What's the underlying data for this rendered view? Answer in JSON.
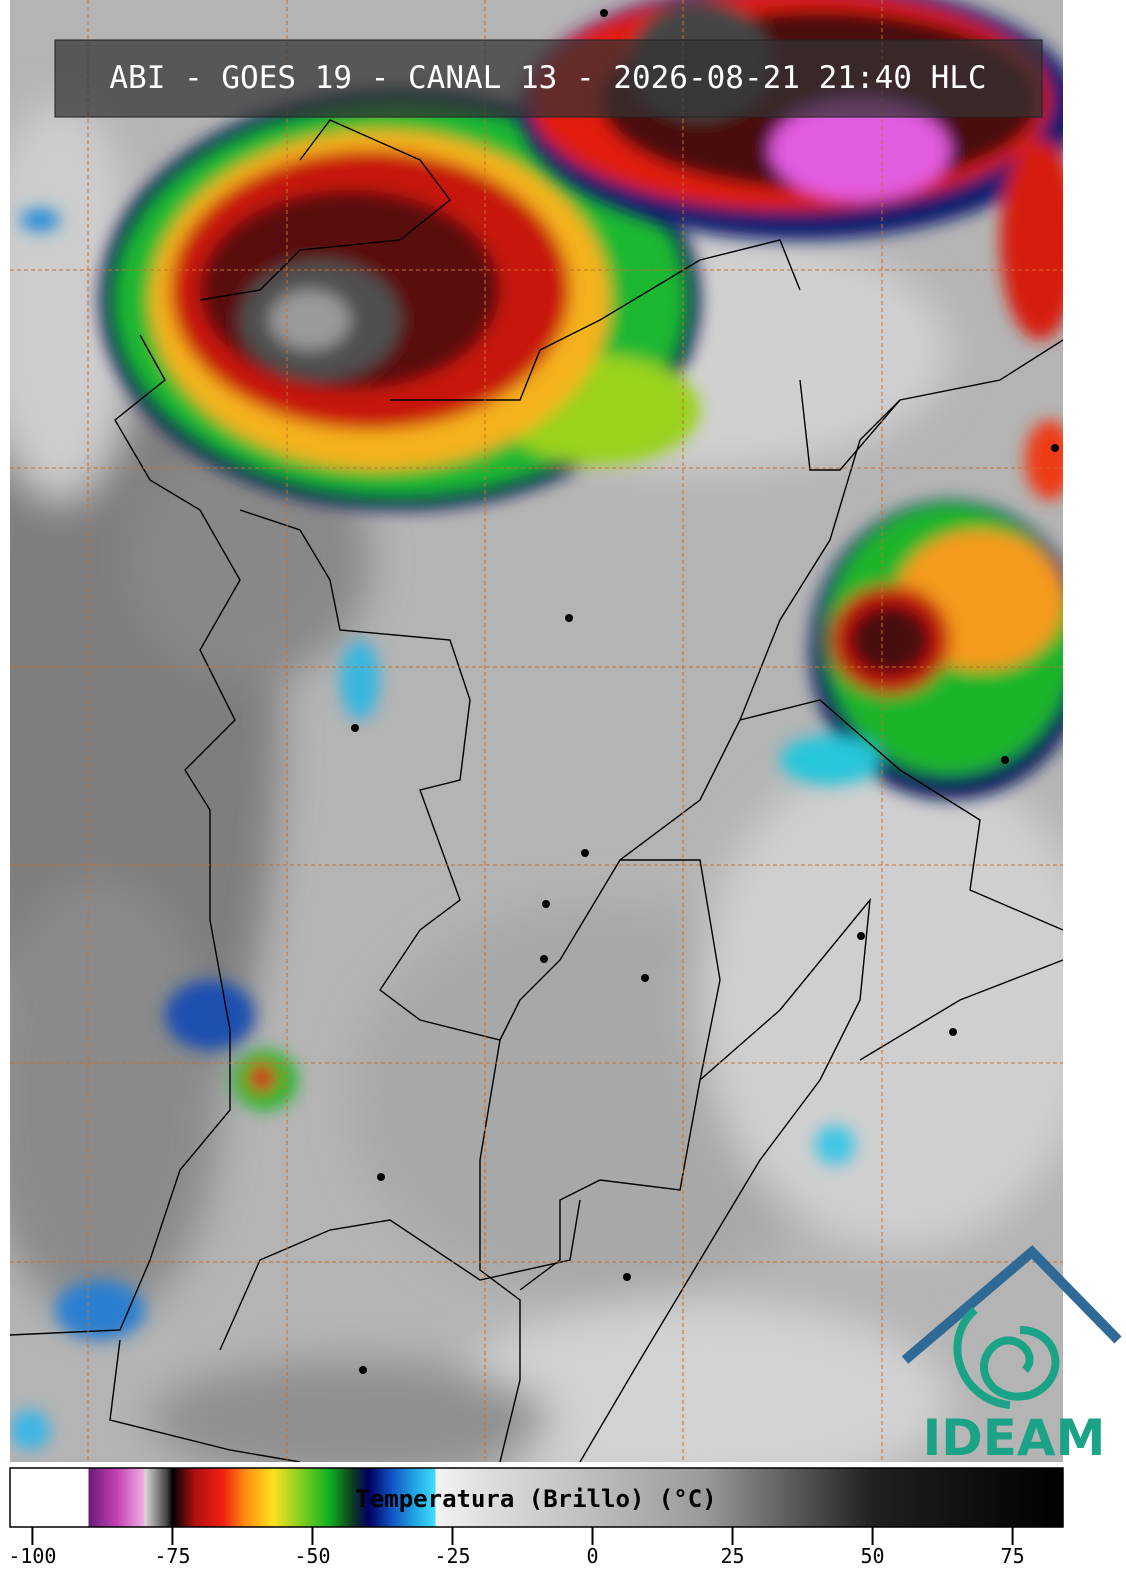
{
  "header": {
    "title": "ABI - GOES 19 - CANAL 13 - 2026-08-21 21:40 HLC"
  },
  "colorbar": {
    "label": "Temperatura (Brillo) (°C)",
    "lim": [
      -104,
      84
    ],
    "ticks": [
      -100,
      -75,
      -50,
      -25,
      0,
      25,
      50,
      75
    ]
  },
  "logo": {
    "text": "IDEAM"
  }
}
